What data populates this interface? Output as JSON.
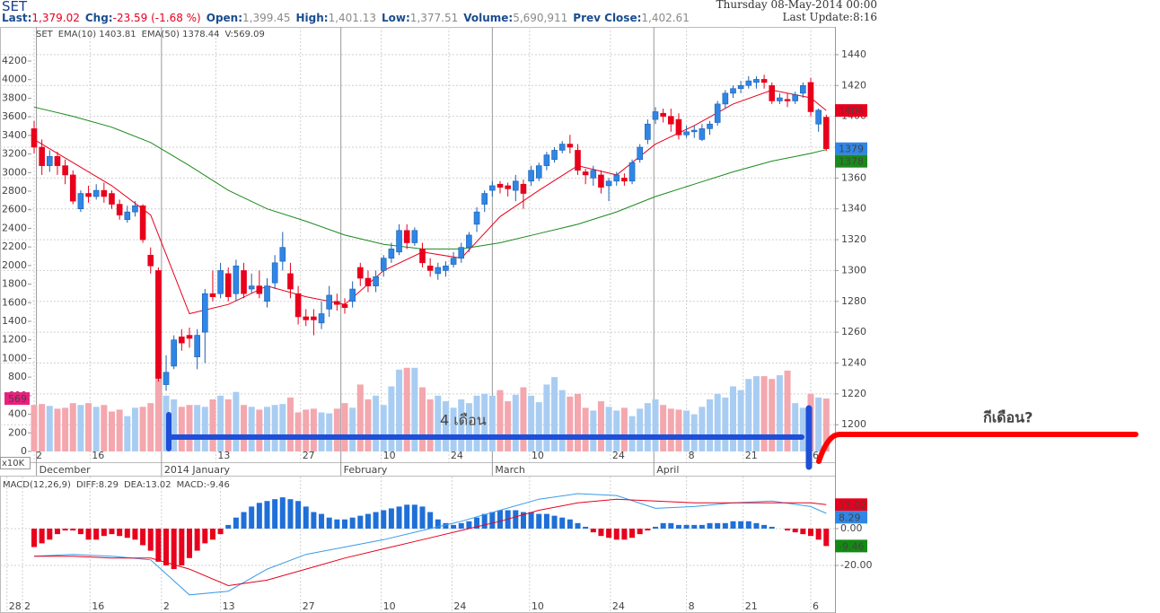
{
  "header": {
    "title": "SET",
    "items": [
      {
        "label": "Last:",
        "value": "1,379.02",
        "value_color": "#e8001c"
      },
      {
        "label": "Chg:",
        "value": "-23.59 (-1.68 %)",
        "value_color": "#e8001c"
      },
      {
        "label": "Open:",
        "value": "1,399.45"
      },
      {
        "label": "High:",
        "value": "1,401.13"
      },
      {
        "label": "Low:",
        "value": "1,377.51"
      },
      {
        "label": "Volume:",
        "value": "5,690,911"
      },
      {
        "label": "Prev Close:",
        "value": "1,402.61"
      }
    ],
    "date": "Thursday 08-May-2014 00:00",
    "update": "Last Update:8:16"
  },
  "annotations": [
    {
      "text": "4 เดือน",
      "color": "#1f4fd8"
    },
    {
      "text": "กีเดือน?",
      "color": "#e8001c"
    }
  ],
  "chart_data": [
    {
      "type": "candlestick",
      "title": "SET",
      "title_color": "#1a9a1a",
      "up_color": "#2f86e6",
      "down_color": "#e8001c",
      "volume_up_color": "#a9cdf2",
      "volume_down_color": "#f4a7ae",
      "open": [
        1392,
        1380,
        1368,
        1374,
        1368,
        1362,
        1340,
        1350,
        1348,
        1352,
        1350,
        1343,
        1333,
        1338,
        1342,
        1310,
        1300,
        1226,
        1238,
        1257,
        1258,
        1244,
        1260,
        1285,
        1285,
        1298,
        1285,
        1300,
        1288,
        1290,
        1280,
        1292,
        1306,
        1298,
        1285,
        1270,
        1270,
        1266,
        1275,
        1280,
        1278,
        1280,
        1302,
        1295,
        1290,
        1300,
        1308,
        1312,
        1326,
        1318,
        1314,
        1303,
        1298,
        1300,
        1304,
        1308,
        1315,
        1330,
        1343,
        1352,
        1356,
        1355,
        1352,
        1356,
        1358,
        1360,
        1368,
        1372,
        1378,
        1382,
        1378,
        1364,
        1360,
        1362,
        1355,
        1358,
        1360,
        1358,
        1372,
        1385,
        1398,
        1402,
        1400,
        1398,
        1388,
        1390,
        1385,
        1392,
        1396,
        1408,
        1415,
        1418,
        1420,
        1422,
        1424,
        1420,
        1410,
        1411,
        1410,
        1415,
        1422,
        1395,
        1399.45
      ],
      "high": [
        1397,
        1385,
        1378,
        1377,
        1372,
        1365,
        1352,
        1355,
        1356,
        1357,
        1352,
        1346,
        1342,
        1345,
        1343,
        1315,
        1302,
        1245,
        1258,
        1262,
        1263,
        1262,
        1288,
        1300,
        1305,
        1302,
        1307,
        1305,
        1298,
        1300,
        1295,
        1310,
        1325,
        1305,
        1290,
        1275,
        1275,
        1280,
        1290,
        1285,
        1282,
        1293,
        1305,
        1300,
        1300,
        1310,
        1318,
        1330,
        1330,
        1328,
        1318,
        1308,
        1305,
        1306,
        1312,
        1318,
        1325,
        1341,
        1352,
        1358,
        1358,
        1357,
        1362,
        1359,
        1368,
        1370,
        1377,
        1380,
        1384,
        1388,
        1382,
        1366,
        1368,
        1365,
        1360,
        1364,
        1363,
        1372,
        1382,
        1398,
        1406,
        1405,
        1405,
        1402,
        1394,
        1394,
        1395,
        1397,
        1410,
        1417,
        1420,
        1423,
        1426,
        1426,
        1427,
        1422,
        1415,
        1415,
        1416,
        1422,
        1425,
        1405,
        1401.13
      ],
      "low": [
        1376,
        1362,
        1364,
        1362,
        1356,
        1343,
        1338,
        1344,
        1346,
        1344,
        1340,
        1333,
        1331,
        1335,
        1318,
        1298,
        1228,
        1222,
        1236,
        1248,
        1250,
        1236,
        1240,
        1280,
        1282,
        1280,
        1280,
        1282,
        1285,
        1282,
        1276,
        1288,
        1300,
        1282,
        1265,
        1264,
        1258,
        1262,
        1270,
        1274,
        1272,
        1276,
        1290,
        1286,
        1286,
        1296,
        1305,
        1310,
        1314,
        1316,
        1302,
        1296,
        1294,
        1296,
        1302,
        1305,
        1312,
        1325,
        1338,
        1348,
        1350,
        1348,
        1345,
        1340,
        1355,
        1358,
        1365,
        1370,
        1376,
        1376,
        1362,
        1356,
        1355,
        1350,
        1345,
        1355,
        1355,
        1356,
        1370,
        1382,
        1395,
        1396,
        1390,
        1385,
        1386,
        1386,
        1384,
        1388,
        1394,
        1405,
        1412,
        1415,
        1418,
        1418,
        1418,
        1408,
        1408,
        1406,
        1408,
        1412,
        1400,
        1390,
        1377.51
      ],
      "close": [
        1380,
        1368,
        1374,
        1368,
        1362,
        1345,
        1350,
        1348,
        1352,
        1348,
        1343,
        1336,
        1338,
        1342,
        1320,
        1303,
        1230,
        1234,
        1255,
        1253,
        1256,
        1258,
        1285,
        1283,
        1300,
        1283,
        1303,
        1285,
        1290,
        1285,
        1290,
        1305,
        1315,
        1288,
        1270,
        1268,
        1268,
        1272,
        1284,
        1278,
        1276,
        1288,
        1295,
        1290,
        1296,
        1308,
        1314,
        1326,
        1318,
        1326,
        1305,
        1300,
        1302,
        1303,
        1308,
        1315,
        1323,
        1338,
        1350,
        1355,
        1354,
        1353,
        1358,
        1350,
        1365,
        1368,
        1375,
        1378,
        1382,
        1380,
        1365,
        1362,
        1365,
        1354,
        1358,
        1362,
        1358,
        1370,
        1380,
        1395,
        1403,
        1400,
        1395,
        1388,
        1390,
        1391,
        1392,
        1395,
        1408,
        1415,
        1418,
        1420,
        1423,
        1424,
        1422,
        1410,
        1412,
        1410,
        1414,
        1420,
        1403,
        1404,
        1379.02
      ],
      "volume": {
        "name": "V:569.09",
        "color": "#f06aa8",
        "values": [
          500,
          510,
          490,
          460,
          470,
          520,
          500,
          520,
          480,
          500,
          430,
          450,
          380,
          470,
          480,
          520,
          780,
          600,
          560,
          480,
          500,
          500,
          480,
          560,
          600,
          560,
          640,
          500,
          480,
          450,
          480,
          500,
          510,
          580,
          420,
          450,
          460,
          420,
          410,
          460,
          520,
          470,
          720,
          560,
          600,
          500,
          700,
          880,
          900,
          900,
          690,
          560,
          600,
          540,
          470,
          560,
          520,
          600,
          620,
          600,
          660,
          540,
          610,
          690,
          600,
          530,
          720,
          800,
          660,
          590,
          620,
          470,
          440,
          540,
          480,
          440,
          470,
          380,
          460,
          520,
          560,
          500,
          460,
          450,
          440,
          400,
          480,
          560,
          620,
          580,
          700,
          660,
          780,
          810,
          810,
          780,
          820,
          870,
          520,
          470,
          620,
          580,
          569.09
        ]
      },
      "series": [
        {
          "name": "EMA(10) 1403.81",
          "color": "#e8001c",
          "x": [
            0,
            5,
            10,
            15,
            20,
            25,
            30,
            35,
            40,
            45,
            50,
            55,
            60,
            65,
            70,
            75,
            80,
            85,
            90,
            95,
            100,
            102
          ],
          "values": [
            1385,
            1370,
            1355,
            1336,
            1272,
            1278,
            1290,
            1283,
            1278,
            1300,
            1312,
            1308,
            1335,
            1352,
            1368,
            1362,
            1382,
            1394,
            1408,
            1417,
            1412,
            1403.81
          ]
        },
        {
          "name": "EMA(50) 1378.44",
          "color": "#1a8a1a",
          "x": [
            0,
            5,
            10,
            15,
            20,
            25,
            30,
            35,
            40,
            45,
            50,
            55,
            60,
            65,
            70,
            75,
            80,
            85,
            90,
            95,
            100,
            102
          ],
          "values": [
            1406,
            1400,
            1393,
            1383,
            1368,
            1352,
            1340,
            1332,
            1323,
            1317,
            1314,
            1314,
            1318,
            1324,
            1330,
            1338,
            1348,
            1356,
            1364,
            1371,
            1376,
            1378.44
          ]
        }
      ],
      "ylim": [
        1181.5,
        1458
      ],
      "yticks": [
        1200,
        1220,
        1240,
        1260,
        1280,
        1300,
        1320,
        1340,
        1360,
        1380,
        1400,
        1420,
        1440
      ],
      "y2lim": [
        0,
        4567
      ],
      "y2ticks": [
        0,
        200,
        400,
        600,
        800,
        1000,
        1200,
        1400,
        1600,
        1800,
        2000,
        2200,
        2400,
        2600,
        2800,
        3000,
        3200,
        3400,
        3600,
        3800,
        4000,
        4200
      ],
      "y2_unit": "x10K",
      "volume_badge": {
        "value": 569.09,
        "label": "569"
      },
      "badges": [
        {
          "value": 1403.81,
          "label": "1404",
          "color": "#e8001c"
        },
        {
          "value": 1379.02,
          "label": "1379",
          "color": "#2f86e6"
        },
        {
          "value": 1378.44,
          "label": "1378",
          "color": "#1a8a1a"
        }
      ],
      "xticks": [
        {
          "value": 0,
          "label": "2"
        },
        {
          "value": 7.2,
          "label": "16"
        },
        {
          "value": 23.4,
          "label": "13"
        },
        {
          "value": 34.3,
          "label": "27"
        },
        {
          "value": 44.7,
          "label": "10"
        },
        {
          "value": 53.4,
          "label": "24"
        },
        {
          "value": 63.8,
          "label": "10"
        },
        {
          "value": 74.2,
          "label": "24"
        },
        {
          "value": 84,
          "label": "8"
        },
        {
          "value": 91.3,
          "label": "21"
        },
        {
          "value": 100,
          "label": "6"
        }
      ],
      "month_ticks": [
        {
          "value": 0.3,
          "label": "December"
        },
        {
          "value": 16.4,
          "label": "2014 January"
        },
        {
          "value": 39.5,
          "label": "February"
        },
        {
          "value": 59,
          "label": "March"
        },
        {
          "value": 79.8,
          "label": "April"
        }
      ],
      "grid": true
    },
    {
      "type": "bar",
      "title": "MACD(12,26,9)",
      "title_color": "#1b4d8e",
      "up_color": "#1f6fd8",
      "down_color": "#e8001c",
      "series": [
        {
          "name": "MACD:-9.46",
          "color": "#138a13",
          "values": [
            -10,
            -8,
            -6,
            -3,
            -1,
            -1,
            -3,
            -6,
            -6,
            -4,
            -3,
            -4,
            -5,
            -6,
            -9,
            -12,
            -18,
            -20,
            -22,
            -20,
            -16,
            -12,
            -8,
            -6,
            -3,
            2,
            6,
            9,
            12,
            14,
            15,
            16,
            17,
            16,
            15,
            12,
            9,
            8,
            6,
            5,
            5,
            6,
            7,
            8,
            9,
            10,
            11,
            12,
            13,
            13,
            12,
            9,
            5,
            3,
            2,
            3,
            4,
            6,
            8,
            9,
            10,
            10,
            10,
            9,
            9,
            8,
            8,
            7,
            6,
            5,
            3,
            1,
            -2,
            -4,
            -5,
            -6,
            -6,
            -5,
            -3,
            -1,
            1,
            3,
            3,
            2,
            2,
            2,
            2,
            3,
            3,
            3,
            4,
            4,
            4,
            3,
            2,
            1,
            0,
            -1,
            -2,
            -3,
            -4,
            -6,
            -9.46
          ]
        },
        {
          "name": "DIFF:8.29",
          "color": "#3a9be8",
          "x": [
            0,
            5,
            10,
            15,
            20,
            25,
            30,
            35,
            40,
            45,
            50,
            55,
            60,
            65,
            70,
            75,
            80,
            85,
            90,
            95,
            100,
            102
          ],
          "values": [
            -15,
            -14,
            -15,
            -17,
            -36,
            -34,
            -22,
            -14,
            -10,
            -6,
            -1,
            4,
            10,
            16,
            19,
            18,
            11,
            12,
            14,
            15,
            12,
            8.29
          ]
        },
        {
          "name": "DEA:13.02",
          "color": "#e8001c",
          "x": [
            0,
            5,
            10,
            15,
            20,
            25,
            30,
            35,
            40,
            45,
            50,
            55,
            60,
            65,
            70,
            75,
            80,
            85,
            90,
            95,
            100,
            102
          ],
          "values": [
            -15,
            -15,
            -16,
            -16,
            -22,
            -31,
            -28,
            -22,
            -16,
            -11,
            -6,
            -1,
            4,
            10,
            14,
            16,
            15,
            14,
            14,
            14,
            14,
            13.02
          ]
        }
      ],
      "ylim": [
        -44.4,
        27.8
      ],
      "yticks": [
        {
          "value": 0,
          "label": "0.00"
        },
        {
          "value": -20,
          "label": "-20.00"
        }
      ],
      "badges": [
        {
          "value": 13.02,
          "label": "13.02",
          "color": "#e8001c"
        },
        {
          "value": 8.29,
          "label": "8.29",
          "color": "#2f86e6"
        },
        {
          "value": -9.46,
          "label": "-9.46",
          "color": "#138a13"
        }
      ],
      "xticks": [
        {
          "value": -3.5,
          "label": "28"
        },
        {
          "value": -1.5,
          "label": "2"
        },
        {
          "value": 7.2,
          "label": "16"
        },
        {
          "value": 16.4,
          "label": "2"
        },
        {
          "value": 24,
          "label": "13"
        },
        {
          "value": 34.3,
          "label": "27"
        },
        {
          "value": 44.7,
          "label": "10"
        },
        {
          "value": 53.8,
          "label": "24"
        },
        {
          "value": 63.8,
          "label": "10"
        },
        {
          "value": 74.2,
          "label": "24"
        },
        {
          "value": 84,
          "label": "8"
        },
        {
          "value": 91.3,
          "label": "21"
        },
        {
          "value": 100,
          "label": "6"
        }
      ],
      "grid": true
    }
  ]
}
